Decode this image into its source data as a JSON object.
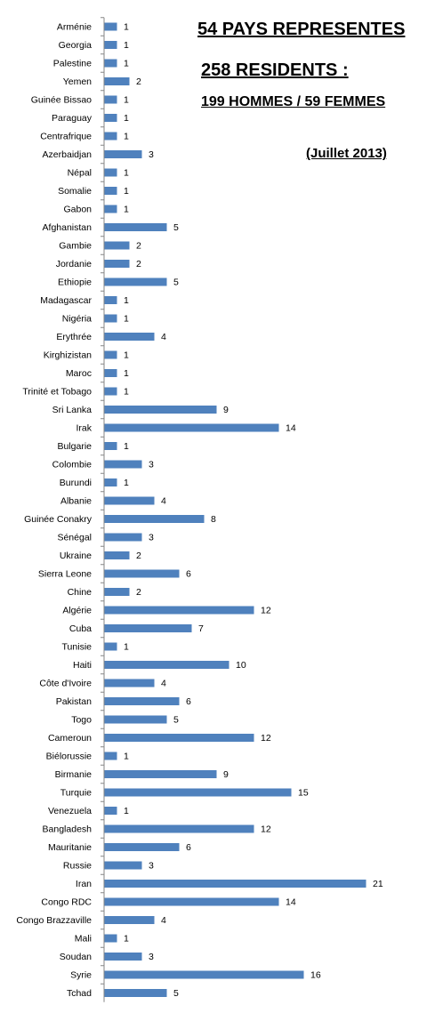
{
  "headings": {
    "countries": "54 PAYS REPRESENTES",
    "residents": "258 RESIDENTS :",
    "breakdown": "199 HOMMES / 59 FEMMES",
    "date": "(Juillet 2013)"
  },
  "chart_data": {
    "type": "bar",
    "orientation": "horizontal",
    "bar_color": "#4f81bd",
    "grid": false,
    "data_labels": true,
    "categories": [
      "Arménie",
      "Georgia",
      "Palestine",
      "Yemen",
      "Guinée Bissao",
      "Paraguay",
      "Centrafrique",
      "Azerbaidjan",
      "Népal",
      "Somalie",
      "Gabon",
      "Afghanistan",
      "Gambie",
      "Jordanie",
      "Ethiopie",
      "Madagascar",
      "Nigéria",
      "Erythrée",
      "Kirghizistan",
      "Maroc",
      "Trinité et Tobago",
      "Sri Lanka",
      "Irak",
      "Bulgarie",
      "Colombie",
      "Burundi",
      "Albanie",
      "Guinée Conakry",
      "Sénégal",
      "Ukraine",
      "Sierra Leone",
      "Chine",
      "Algérie",
      "Cuba",
      "Tunisie",
      "Haiti",
      "Côte d'Ivoire",
      "Pakistan",
      "Togo",
      "Cameroun",
      "Biélorussie",
      "Birmanie",
      "Turquie",
      "Venezuela",
      "Bangladesh",
      "Mauritanie",
      "Russie",
      "Iran",
      "Congo RDC",
      "Congo Brazzaville",
      "Mali",
      "Soudan",
      "Syrie",
      "Tchad"
    ],
    "values": [
      1,
      1,
      1,
      2,
      1,
      1,
      1,
      3,
      1,
      1,
      1,
      5,
      2,
      2,
      5,
      1,
      1,
      4,
      1,
      1,
      1,
      9,
      14,
      1,
      3,
      1,
      4,
      8,
      3,
      2,
      6,
      2,
      12,
      7,
      1,
      10,
      4,
      6,
      5,
      12,
      1,
      9,
      15,
      1,
      12,
      6,
      3,
      21,
      14,
      4,
      1,
      3,
      16,
      5
    ]
  }
}
